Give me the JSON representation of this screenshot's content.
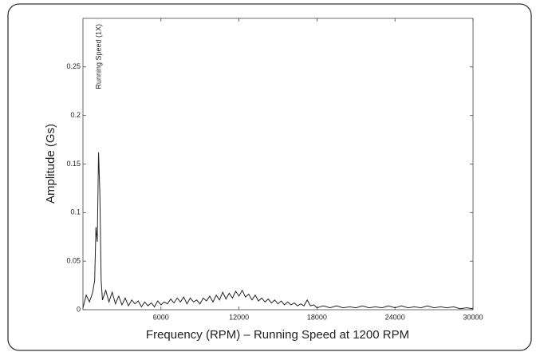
{
  "chart_data": {
    "type": "line",
    "annotation": "Running Speed (1X)",
    "xlabel": "Frequency (RPM) – Running Speed at 1200 RPM",
    "ylabel": "Amplitude (Gs)",
    "xlim": [
      0,
      30000
    ],
    "xticks": [
      6000,
      12000,
      18000,
      24000,
      30000
    ],
    "ylim": [
      0,
      0.3
    ],
    "yticks": [
      0,
      0.05,
      0.1,
      0.15,
      0.2,
      0.25
    ],
    "color": "#222222",
    "x": [
      0,
      250,
      500,
      750,
      900,
      1000,
      1100,
      1200,
      1300,
      1400,
      1500,
      1750,
      2000,
      2250,
      2500,
      2750,
      3000,
      3250,
      3500,
      3750,
      4000,
      4250,
      4500,
      4750,
      5000,
      5250,
      5500,
      5750,
      6000,
      6250,
      6500,
      6750,
      7000,
      7250,
      7500,
      7750,
      8000,
      8250,
      8500,
      8750,
      9000,
      9250,
      9500,
      9750,
      10000,
      10250,
      10500,
      10750,
      11000,
      11250,
      11500,
      11750,
      12000,
      12250,
      12500,
      12750,
      13000,
      13250,
      13500,
      13750,
      14000,
      14250,
      14500,
      14750,
      15000,
      15250,
      15500,
      15750,
      16000,
      16250,
      16500,
      16750,
      17000,
      17250,
      17500,
      17750,
      18000,
      18500,
      19000,
      19500,
      20000,
      20500,
      21000,
      21500,
      22000,
      22500,
      23000,
      23500,
      24000,
      24500,
      25000,
      25500,
      26000,
      26500,
      27000,
      27500,
      28000,
      28500,
      29000,
      29500,
      30000
    ],
    "values": [
      0.002,
      0.015,
      0.008,
      0.018,
      0.03,
      0.085,
      0.07,
      0.162,
      0.12,
      0.03,
      0.01,
      0.02,
      0.008,
      0.018,
      0.006,
      0.014,
      0.005,
      0.012,
      0.004,
      0.01,
      0.006,
      0.009,
      0.003,
      0.008,
      0.004,
      0.007,
      0.003,
      0.009,
      0.005,
      0.008,
      0.006,
      0.011,
      0.007,
      0.012,
      0.008,
      0.013,
      0.006,
      0.012,
      0.008,
      0.01,
      0.006,
      0.012,
      0.009,
      0.014,
      0.008,
      0.015,
      0.01,
      0.018,
      0.011,
      0.017,
      0.012,
      0.019,
      0.014,
      0.02,
      0.013,
      0.016,
      0.01,
      0.015,
      0.009,
      0.012,
      0.008,
      0.011,
      0.007,
      0.01,
      0.006,
      0.009,
      0.005,
      0.008,
      0.005,
      0.007,
      0.004,
      0.006,
      0.004,
      0.01,
      0.004,
      0.005,
      0.002,
      0.004,
      0.002,
      0.004,
      0.002,
      0.003,
      0.002,
      0.004,
      0.002,
      0.003,
      0.002,
      0.004,
      0.002,
      0.004,
      0.002,
      0.003,
      0.002,
      0.004,
      0.002,
      0.003,
      0.002,
      0.003,
      0.001,
      0.002,
      0.001
    ]
  }
}
